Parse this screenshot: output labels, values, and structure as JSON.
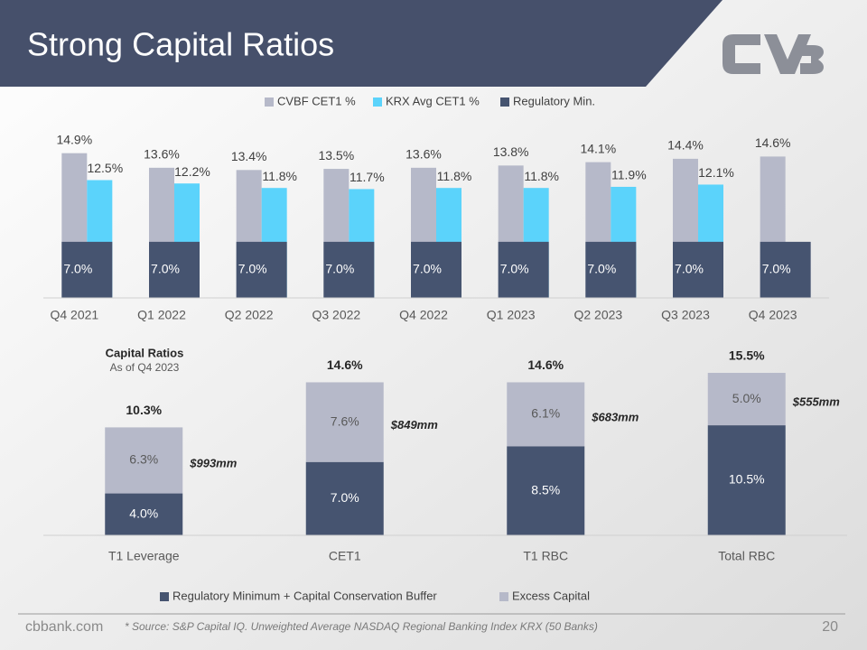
{
  "title": "Strong Capital Ratios",
  "footer": {
    "site": "cbbank.com",
    "source": "* Source: S&P Capital IQ. Unweighted Average NASDAQ Regional Banking Index KRX (50 Banks)",
    "page": "20"
  },
  "chart_data": [
    {
      "type": "bar",
      "categories": [
        "Q4 2021",
        "Q1 2022",
        "Q2 2022",
        "Q3 2022",
        "Q4 2022",
        "Q1 2023",
        "Q2 2023",
        "Q3 2023",
        "Q4 2023"
      ],
      "series": [
        {
          "name": "CVBF CET1 %",
          "color": "#b6b9c9",
          "values": [
            14.9,
            13.6,
            13.4,
            13.5,
            13.6,
            13.8,
            14.1,
            14.4,
            14.6
          ],
          "value_labels": [
            "14.9%",
            "13.6%",
            "13.4%",
            "13.5%",
            "13.6%",
            "13.8%",
            "14.1%",
            "14.4%",
            "14.6%"
          ]
        },
        {
          "name": "KRX Avg CET1 %",
          "color": "#5bd3fb",
          "values": [
            12.5,
            12.2,
            11.8,
            11.7,
            11.8,
            11.8,
            11.9,
            12.1,
            null
          ],
          "value_labels": [
            "12.5%",
            "12.2%",
            "11.8%",
            "11.7%",
            "11.8%",
            "11.8%",
            "11.9%",
            "12.1%",
            null
          ]
        },
        {
          "name": "Regulatory Min.",
          "color": "#465470",
          "values": [
            7.0,
            7.0,
            7.0,
            7.0,
            7.0,
            7.0,
            7.0,
            7.0,
            7.0
          ],
          "value_labels": [
            "7.0%",
            "7.0%",
            "7.0%",
            "7.0%",
            "7.0%",
            "7.0%",
            "7.0%",
            "7.0%",
            "7.0%"
          ]
        }
      ],
      "ylim": [
        2,
        16
      ],
      "legend": "top"
    },
    {
      "type": "stacked_bar",
      "title": "Capital Ratios",
      "subtitle": "As of Q4 2023",
      "categories": [
        "T1 Leverage",
        "CET1",
        "T1 RBC",
        "Total RBC"
      ],
      "series": [
        {
          "name": "Regulatory Minimum +  Capital Conservation Buffer",
          "color": "#465470",
          "values": [
            4.0,
            7.0,
            8.5,
            10.5
          ],
          "value_labels": [
            "4.0%",
            "7.0%",
            "8.5%",
            "10.5%"
          ]
        },
        {
          "name": "Excess Capital",
          "color": "#b6b9c9",
          "values": [
            6.3,
            7.6,
            6.1,
            5.0
          ],
          "value_labels": [
            "6.3%",
            "7.6%",
            "6.1%",
            "5.0%"
          ]
        }
      ],
      "total_labels": [
        "10.3%",
        "14.6%",
        "14.6%",
        "15.5%"
      ],
      "annotations": [
        "$993mm",
        "$849mm",
        "$683mm",
        "$555mm"
      ],
      "ylim": [
        0,
        18
      ],
      "legend": "bottom"
    }
  ]
}
